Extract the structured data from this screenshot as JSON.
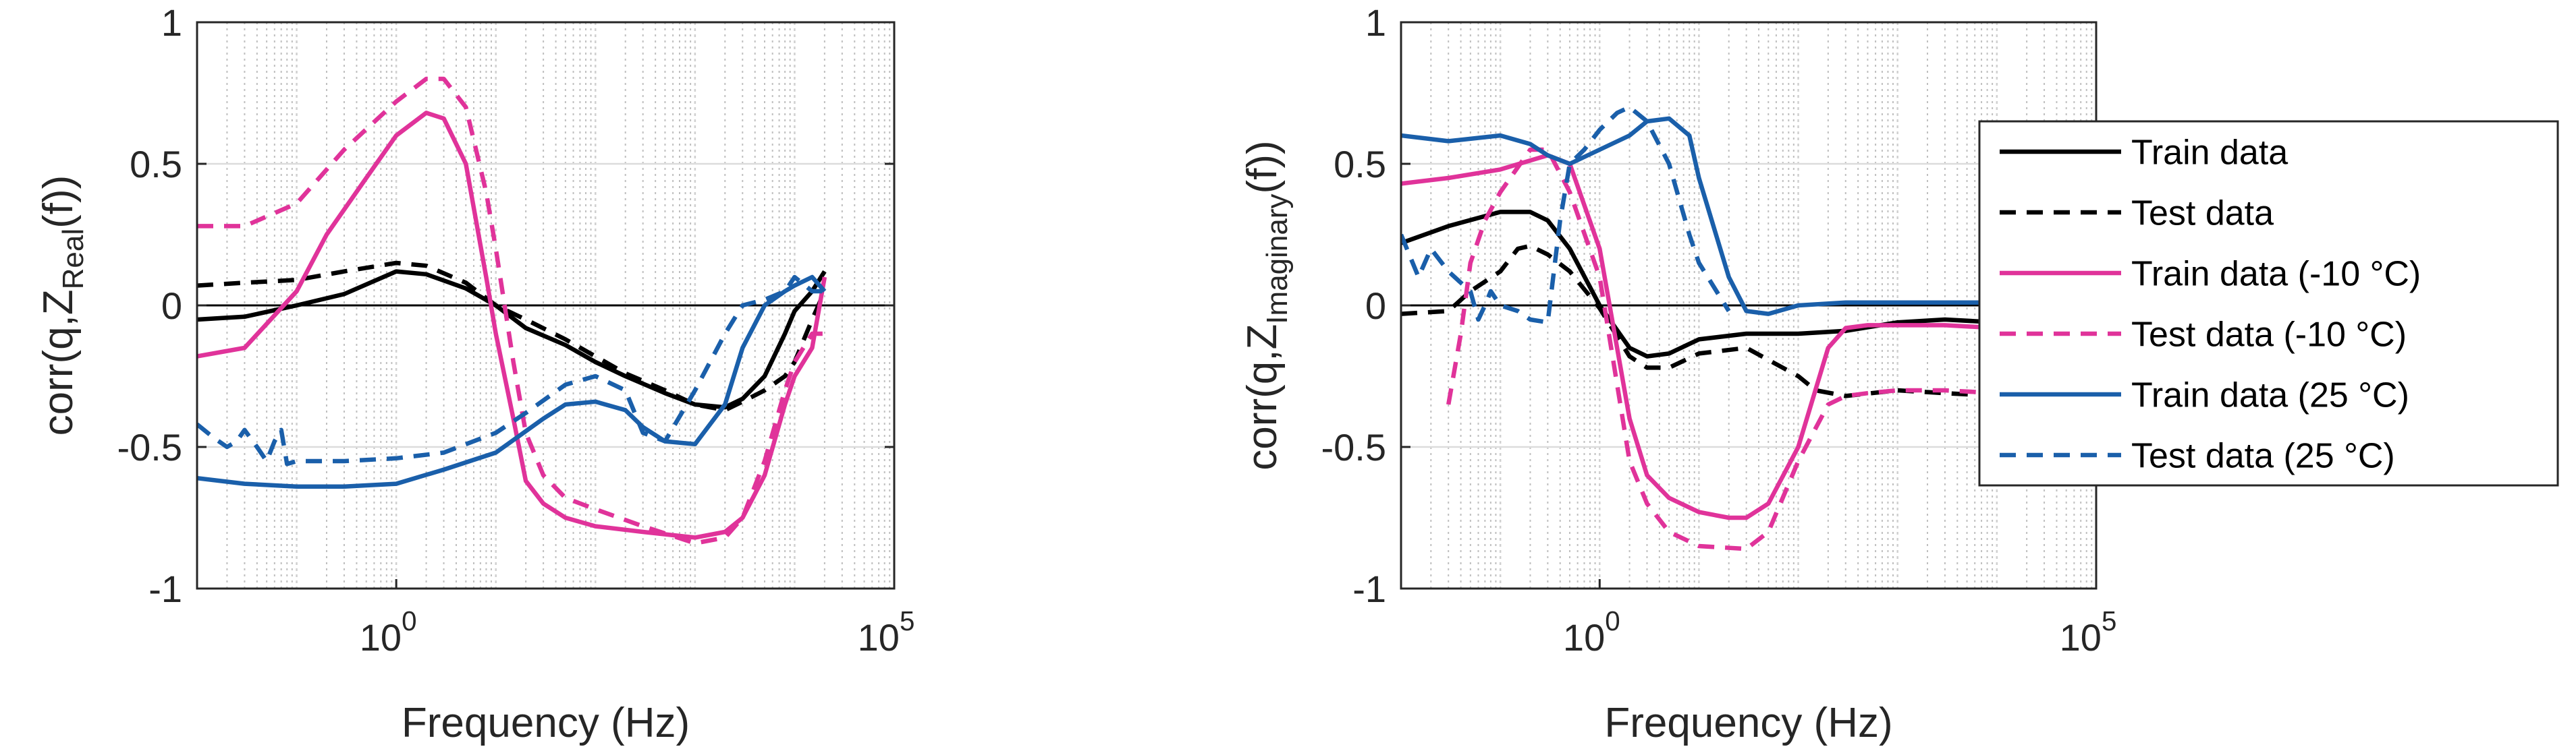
{
  "chart_data": [
    {
      "type": "line",
      "panel": "left",
      "xlabel": "Frequency (Hz)",
      "ylabel": "corr(q,Z_Real(f))",
      "ylabel_main": "corr(q,Z",
      "ylabel_sub": "Real",
      "ylabel_tail": "(f))",
      "xscale": "log",
      "xlim": [
        0.01,
        100000
      ],
      "ylim": [
        -1,
        1
      ],
      "xticks": [
        {
          "value": 1,
          "base": "10",
          "exp": "0"
        },
        {
          "value": 100000,
          "base": "10",
          "exp": "5"
        }
      ],
      "yticks": [
        {
          "value": 1,
          "label": "1"
        },
        {
          "value": 0.5,
          "label": "0.5"
        },
        {
          "value": 0,
          "label": "0"
        },
        {
          "value": -0.5,
          "label": "-0.5"
        },
        {
          "value": -1,
          "label": "-1"
        }
      ],
      "grid": true,
      "zero_line": true,
      "series": [
        {
          "name": "Train data",
          "color": "#000000",
          "dash": "solid",
          "x": [
            0.01,
            0.03,
            0.1,
            0.3,
            1,
            2,
            5,
            10,
            20,
            50,
            100,
            200,
            500,
            1000,
            2000,
            3000,
            5000,
            8000,
            10000,
            15000,
            20000
          ],
          "y": [
            -0.05,
            -0.04,
            0.0,
            0.04,
            0.12,
            0.11,
            0.06,
            0.0,
            -0.08,
            -0.14,
            -0.2,
            -0.25,
            -0.31,
            -0.35,
            -0.36,
            -0.33,
            -0.25,
            -0.1,
            -0.02,
            0.05,
            0.12
          ]
        },
        {
          "name": "Test data",
          "color": "#000000",
          "dash": "dashed",
          "x": [
            0.01,
            0.03,
            0.1,
            0.3,
            1,
            2,
            5,
            10,
            20,
            50,
            100,
            200,
            500,
            1000,
            2000,
            3000,
            5000,
            8000,
            10000,
            15000,
            20000
          ],
          "y": [
            0.07,
            0.08,
            0.09,
            0.12,
            0.15,
            0.14,
            0.08,
            0.0,
            -0.05,
            -0.12,
            -0.18,
            -0.24,
            -0.3,
            -0.35,
            -0.37,
            -0.34,
            -0.3,
            -0.25,
            -0.2,
            -0.05,
            0.05
          ]
        },
        {
          "name": "Train data (-10 °C)",
          "color": "#E0339A",
          "dash": "solid",
          "x": [
            0.01,
            0.03,
            0.1,
            0.2,
            0.5,
            1,
            2,
            3,
            5,
            8,
            10,
            15,
            20,
            30,
            50,
            100,
            300,
            1000,
            2000,
            3000,
            5000,
            8000,
            10000,
            15000,
            20000
          ],
          "y": [
            -0.18,
            -0.15,
            0.05,
            0.25,
            0.45,
            0.6,
            0.68,
            0.66,
            0.5,
            0.1,
            -0.1,
            -0.4,
            -0.62,
            -0.7,
            -0.75,
            -0.78,
            -0.8,
            -0.82,
            -0.8,
            -0.75,
            -0.6,
            -0.35,
            -0.25,
            -0.15,
            0.1
          ]
        },
        {
          "name": "Test data (-10 °C)",
          "color": "#E0339A",
          "dash": "dashed",
          "x": [
            0.01,
            0.03,
            0.1,
            0.3,
            1,
            2,
            3,
            5,
            8,
            10,
            15,
            20,
            30,
            50,
            100,
            300,
            1000,
            2000,
            3000,
            5000,
            8000,
            10000,
            15000,
            20000
          ],
          "y": [
            0.28,
            0.28,
            0.36,
            0.55,
            0.72,
            0.8,
            0.8,
            0.7,
            0.4,
            0.2,
            -0.2,
            -0.45,
            -0.6,
            -0.68,
            -0.72,
            -0.78,
            -0.84,
            -0.82,
            -0.75,
            -0.55,
            -0.3,
            -0.2,
            -0.1,
            -0.1
          ]
        },
        {
          "name": "Train data (25 °C)",
          "color": "#1A5FAA",
          "dash": "solid",
          "x": [
            0.01,
            0.03,
            0.1,
            0.3,
            1,
            3,
            10,
            30,
            50,
            100,
            200,
            300,
            500,
            1000,
            2000,
            3000,
            5000,
            8000,
            10000,
            15000,
            20000
          ],
          "y": [
            -0.61,
            -0.63,
            -0.64,
            -0.64,
            -0.63,
            -0.58,
            -0.52,
            -0.4,
            -0.35,
            -0.34,
            -0.37,
            -0.43,
            -0.48,
            -0.49,
            -0.35,
            -0.15,
            0.0,
            0.05,
            0.07,
            0.1,
            0.05
          ]
        },
        {
          "name": "Test data (25 °C)",
          "color": "#1A5FAA",
          "dash": "dashed",
          "x": [
            0.01,
            0.015,
            0.02,
            0.025,
            0.03,
            0.04,
            0.05,
            0.06,
            0.07,
            0.08,
            0.1,
            0.3,
            1,
            3,
            10,
            20,
            50,
            100,
            200,
            300,
            500,
            1000,
            2000,
            3000,
            5000,
            8000,
            10000,
            15000,
            20000
          ],
          "y": [
            -0.42,
            -0.47,
            -0.5,
            -0.48,
            -0.44,
            -0.5,
            -0.55,
            -0.48,
            -0.44,
            -0.56,
            -0.55,
            -0.55,
            -0.54,
            -0.52,
            -0.45,
            -0.38,
            -0.28,
            -0.25,
            -0.3,
            -0.45,
            -0.48,
            -0.3,
            -0.1,
            0.0,
            0.02,
            0.05,
            0.1,
            0.05,
            0.05
          ]
        }
      ]
    },
    {
      "type": "line",
      "panel": "right",
      "xlabel": "Frequency (Hz)",
      "ylabel": "corr(q,Z_Imaginary(f))",
      "ylabel_main": "corr(q,Z",
      "ylabel_sub": "Imaginary",
      "ylabel_tail": "(f))",
      "xscale": "log",
      "xlim": [
        0.01,
        100000
      ],
      "ylim": [
        -1,
        1
      ],
      "xticks": [
        {
          "value": 1,
          "base": "10",
          "exp": "0"
        },
        {
          "value": 100000,
          "base": "10",
          "exp": "5"
        }
      ],
      "yticks": [
        {
          "value": 1,
          "label": "1"
        },
        {
          "value": 0.5,
          "label": "0.5"
        },
        {
          "value": 0,
          "label": "0"
        },
        {
          "value": -0.5,
          "label": "-0.5"
        },
        {
          "value": -1,
          "label": "-1"
        }
      ],
      "grid": true,
      "zero_line": true,
      "series": [
        {
          "name": "Train data",
          "color": "#000000",
          "dash": "solid",
          "x": [
            0.01,
            0.03,
            0.1,
            0.2,
            0.3,
            0.5,
            1,
            2,
            3,
            5,
            10,
            30,
            100,
            300,
            1000,
            3000,
            10000,
            20000
          ],
          "y": [
            0.22,
            0.28,
            0.33,
            0.33,
            0.3,
            0.2,
            0.0,
            -0.15,
            -0.18,
            -0.17,
            -0.12,
            -0.1,
            -0.1,
            -0.09,
            -0.06,
            -0.05,
            -0.06,
            -0.08
          ]
        },
        {
          "name": "Test data",
          "color": "#000000",
          "dash": "dashed",
          "x": [
            0.01,
            0.03,
            0.05,
            0.1,
            0.15,
            0.2,
            0.3,
            0.5,
            1,
            2,
            3,
            5,
            10,
            30,
            100,
            150,
            300,
            1000,
            3000,
            10000,
            20000
          ],
          "y": [
            -0.03,
            -0.02,
            0.05,
            0.12,
            0.2,
            0.21,
            0.18,
            0.12,
            -0.01,
            -0.18,
            -0.22,
            -0.22,
            -0.17,
            -0.15,
            -0.25,
            -0.3,
            -0.32,
            -0.3,
            -0.31,
            -0.32,
            -0.33
          ]
        },
        {
          "name": "Train data (-10 °C)",
          "color": "#E0339A",
          "dash": "solid",
          "x": [
            0.01,
            0.03,
            0.1,
            0.3,
            0.5,
            1,
            2,
            3,
            5,
            10,
            20,
            30,
            50,
            100,
            200,
            300,
            500,
            1000,
            3000,
            10000,
            20000
          ],
          "y": [
            0.43,
            0.45,
            0.48,
            0.53,
            0.5,
            0.2,
            -0.4,
            -0.6,
            -0.68,
            -0.73,
            -0.75,
            -0.75,
            -0.7,
            -0.5,
            -0.15,
            -0.08,
            -0.07,
            -0.07,
            -0.07,
            -0.08,
            -0.09
          ]
        },
        {
          "name": "Test data (-10 °C)",
          "color": "#E0339A",
          "dash": "dashed",
          "x": [
            0.03,
            0.04,
            0.05,
            0.07,
            0.1,
            0.2,
            0.3,
            0.5,
            1,
            2,
            3,
            5,
            10,
            30,
            50,
            100,
            200,
            300,
            500,
            1000,
            3000,
            10000,
            20000
          ],
          "y": [
            -0.35,
            -0.1,
            0.15,
            0.3,
            0.4,
            0.55,
            0.55,
            0.4,
            0.1,
            -0.55,
            -0.7,
            -0.8,
            -0.85,
            -0.86,
            -0.8,
            -0.55,
            -0.35,
            -0.32,
            -0.31,
            -0.3,
            -0.3,
            -0.31,
            -0.32
          ]
        },
        {
          "name": "Train data (25 °C)",
          "color": "#1A5FAA",
          "dash": "solid",
          "x": [
            0.01,
            0.03,
            0.1,
            0.2,
            0.3,
            0.5,
            1,
            2,
            3,
            5,
            8,
            10,
            20,
            30,
            50,
            100,
            300,
            1000,
            3000,
            10000,
            20000
          ],
          "y": [
            0.6,
            0.58,
            0.6,
            0.57,
            0.53,
            0.5,
            0.55,
            0.6,
            0.65,
            0.66,
            0.6,
            0.45,
            0.1,
            -0.02,
            -0.03,
            0.0,
            0.01,
            0.01,
            0.01,
            0.01,
            0.01
          ]
        },
        {
          "name": "Test data (25 °C)",
          "color": "#1A5FAA",
          "dash": "dashed",
          "x": [
            0.01,
            0.015,
            0.02,
            0.03,
            0.04,
            0.05,
            0.06,
            0.07,
            0.08,
            0.1,
            0.15,
            0.2,
            0.3,
            0.4,
            0.5,
            0.7,
            1,
            1.5,
            2,
            3,
            5,
            8,
            10,
            20
          ],
          "y": [
            0.25,
            0.1,
            0.2,
            0.12,
            0.08,
            0.05,
            -0.05,
            0.0,
            0.05,
            0.0,
            -0.02,
            -0.05,
            -0.06,
            0.3,
            0.5,
            0.55,
            0.62,
            0.68,
            0.7,
            0.65,
            0.5,
            0.25,
            0.15,
            -0.02
          ]
        }
      ]
    }
  ]
}
